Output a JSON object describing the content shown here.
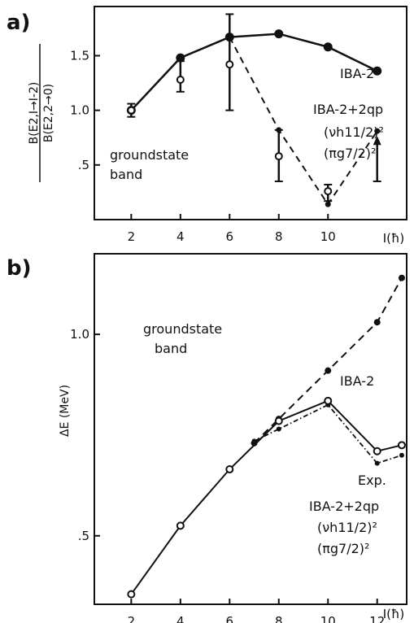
{
  "chart_data": [
    {
      "type": "line",
      "panel_label": "a)",
      "ylabel_numerator": "B(E2,I→I-2)",
      "ylabel_denominator": "B(E2,2→0)",
      "xlabel": "I(ħ)",
      "x_ticks": [
        "2",
        "4",
        "6",
        "8",
        "10"
      ],
      "y_ticks": [
        "1.0",
        "1.5",
        ".5"
      ],
      "xlim": [
        0.5,
        13.2
      ],
      "ylim": [
        0.0,
        1.95
      ],
      "annotation": [
        "groundstate",
        "band"
      ],
      "series": [
        {
          "name": "IBA-2",
          "style": "solid-filled-dots",
          "x": [
            2,
            4,
            6,
            8,
            10,
            12
          ],
          "y": [
            1.0,
            1.48,
            1.67,
            1.7,
            1.58,
            1.36
          ]
        },
        {
          "name": "IBA-2+2qp",
          "name_lines": [
            "IBA-2+2qp",
            "(νh11/2)²",
            "(πg7/2)²"
          ],
          "style": "dashed-small-dots",
          "x": [
            6,
            8,
            10,
            12
          ],
          "y": [
            1.67,
            0.82,
            0.14,
            0.81
          ]
        },
        {
          "name": "Exp.",
          "style": "open-circles-errorbars",
          "points": [
            {
              "x": 2,
              "y": 1.0,
              "lo": 0.94,
              "hi": 1.06
            },
            {
              "x": 4,
              "y": 1.28,
              "lo": 1.17,
              "hi": 1.45
            },
            {
              "x": 6,
              "y": 1.42,
              "lo": 1.0,
              "hi": 1.88
            },
            {
              "x": 8,
              "y": 0.58,
              "lo": 0.35,
              "hi": 0.82
            },
            {
              "x": 10,
              "y": 0.26,
              "lo": 0.17,
              "hi": 0.32
            }
          ],
          "lower_limit": {
            "x": 12,
            "from": 0.35,
            "to": 0.75
          }
        }
      ]
    },
    {
      "type": "line",
      "panel_label": "b)",
      "ylabel": "ΔE (MeV)",
      "xlabel": "I(ħ)",
      "x_ticks": [
        "2",
        "4",
        "6",
        "8",
        "10",
        "12"
      ],
      "y_ticks": [
        "1.0",
        ".5"
      ],
      "xlim": [
        0.5,
        13.2
      ],
      "ylim": [
        0.33,
        1.2
      ],
      "annotation": [
        "groundstate",
        "band"
      ],
      "series": [
        {
          "name": "IBA-2",
          "style": "dashed-filled-dots",
          "x": [
            7,
            8,
            10,
            12,
            13
          ],
          "y": [
            0.73,
            0.79,
            0.91,
            1.03,
            1.14
          ]
        },
        {
          "name": "Exp.",
          "style": "solid-open-circles",
          "x": [
            2,
            4,
            6,
            8,
            10,
            12,
            13
          ],
          "y": [
            0.355,
            0.525,
            0.665,
            0.785,
            0.835,
            0.71,
            0.725
          ]
        },
        {
          "name": "IBA-2+2qp",
          "name_lines": [
            "IBA-2+2qp",
            "(νh11/2)²",
            "(πg7/2)²"
          ],
          "style": "dashdot-small-dots",
          "x": [
            7,
            8,
            10,
            12,
            13
          ],
          "y": [
            0.735,
            0.765,
            0.825,
            0.68,
            0.7
          ]
        }
      ]
    }
  ]
}
